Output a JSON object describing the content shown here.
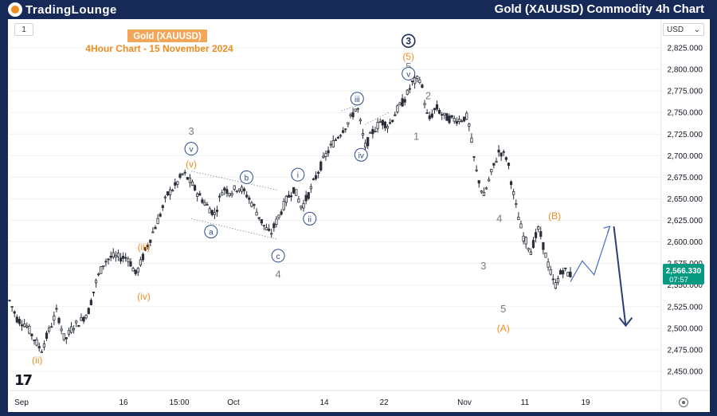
{
  "header": {
    "logo_main": "TradingLounge",
    "title": "Gold (XAUUSD) Commodity 4h Chart"
  },
  "toolbar": {
    "timeframe": "1",
    "currency": "USD",
    "currency_caret": "⌄"
  },
  "tv_logo": "17",
  "chart_data": {
    "type": "candlestick",
    "instrument_label": "Gold (XAUUSD)",
    "subtitle": "4Hour Chart - 15 November  2024",
    "y_axis": {
      "ylim": [
        2430,
        2840
      ],
      "ticks": [
        2450,
        2475,
        2500,
        2525,
        2550,
        2575,
        2600,
        2625,
        2650,
        2675,
        2700,
        2725,
        2750,
        2775,
        2800,
        2825
      ]
    },
    "x_axis": {
      "labels": [
        "Sep",
        "16",
        "15:00",
        "Oct",
        "14",
        "22",
        "Nov",
        "11",
        "19"
      ]
    },
    "last_price": {
      "value": "2,566.330",
      "countdown": "07:57"
    },
    "price_path": [
      {
        "t": 0,
        "p": 2532
      },
      {
        "t": 2,
        "p": 2510
      },
      {
        "t": 4,
        "p": 2505
      },
      {
        "t": 6,
        "p": 2490
      },
      {
        "t": 8,
        "p": 2474
      },
      {
        "t": 10,
        "p": 2497
      },
      {
        "t": 12,
        "p": 2520
      },
      {
        "t": 14,
        "p": 2485
      },
      {
        "t": 16,
        "p": 2502
      },
      {
        "t": 18,
        "p": 2508
      },
      {
        "t": 20,
        "p": 2520
      },
      {
        "t": 22,
        "p": 2555
      },
      {
        "t": 24,
        "p": 2577
      },
      {
        "t": 26,
        "p": 2583
      },
      {
        "t": 28,
        "p": 2582
      },
      {
        "t": 30,
        "p": 2582
      },
      {
        "t": 32,
        "p": 2562
      },
      {
        "t": 34,
        "p": 2585
      },
      {
        "t": 36,
        "p": 2608
      },
      {
        "t": 38,
        "p": 2630
      },
      {
        "t": 40,
        "p": 2655
      },
      {
        "t": 42,
        "p": 2665
      },
      {
        "t": 44,
        "p": 2680
      },
      {
        "t": 46,
        "p": 2668
      },
      {
        "t": 48,
        "p": 2654
      },
      {
        "t": 50,
        "p": 2642
      },
      {
        "t": 52,
        "p": 2632
      },
      {
        "t": 54,
        "p": 2662
      },
      {
        "t": 56,
        "p": 2658
      },
      {
        "t": 58,
        "p": 2664
      },
      {
        "t": 60,
        "p": 2655
      },
      {
        "t": 62,
        "p": 2640
      },
      {
        "t": 64,
        "p": 2622
      },
      {
        "t": 66,
        "p": 2608
      },
      {
        "t": 68,
        "p": 2628
      },
      {
        "t": 70,
        "p": 2648
      },
      {
        "t": 72,
        "p": 2662
      },
      {
        "t": 74,
        "p": 2640
      },
      {
        "t": 76,
        "p": 2658
      },
      {
        "t": 78,
        "p": 2680
      },
      {
        "t": 80,
        "p": 2700
      },
      {
        "t": 82,
        "p": 2715
      },
      {
        "t": 84,
        "p": 2728
      },
      {
        "t": 86,
        "p": 2740
      },
      {
        "t": 88,
        "p": 2758
      },
      {
        "t": 90,
        "p": 2710
      },
      {
        "t": 92,
        "p": 2728
      },
      {
        "t": 94,
        "p": 2740
      },
      {
        "t": 96,
        "p": 2735
      },
      {
        "t": 98,
        "p": 2752
      },
      {
        "t": 100,
        "p": 2765
      },
      {
        "t": 102,
        "p": 2784
      },
      {
        "t": 104,
        "p": 2790
      },
      {
        "t": 106,
        "p": 2740
      },
      {
        "t": 108,
        "p": 2756
      },
      {
        "t": 110,
        "p": 2745
      },
      {
        "t": 112,
        "p": 2742
      },
      {
        "t": 114,
        "p": 2742
      },
      {
        "t": 116,
        "p": 2745
      },
      {
        "t": 118,
        "p": 2685
      },
      {
        "t": 120,
        "p": 2652
      },
      {
        "t": 122,
        "p": 2680
      },
      {
        "t": 124,
        "p": 2706
      },
      {
        "t": 126,
        "p": 2697
      },
      {
        "t": 128,
        "p": 2645
      },
      {
        "t": 130,
        "p": 2607
      },
      {
        "t": 132,
        "p": 2590
      },
      {
        "t": 134,
        "p": 2616
      },
      {
        "t": 136,
        "p": 2580
      },
      {
        "t": 138,
        "p": 2548
      },
      {
        "t": 140,
        "p": 2568
      },
      {
        "t": 142,
        "p": 2562
      }
    ],
    "channels": [
      {
        "from": {
          "t": 46,
          "p": 2682
        },
        "to": {
          "t": 68,
          "p": 2660
        }
      },
      {
        "from": {
          "t": 46,
          "p": 2627
        },
        "to": {
          "t": 68,
          "p": 2603
        }
      },
      {
        "from": {
          "t": 90,
          "p": 2736
        },
        "to": {
          "t": 96,
          "p": 2750
        }
      },
      {
        "from": {
          "t": 84,
          "p": 2752
        },
        "to": {
          "t": 88,
          "p": 2758
        }
      }
    ],
    "projection": [
      {
        "t": 142,
        "p": 2554
      },
      {
        "t": 145,
        "p": 2578
      },
      {
        "t": 148,
        "p": 2562
      },
      {
        "t": 152,
        "p": 2618
      }
    ],
    "projection_drop": {
      "from": {
        "t": 153,
        "p": 2618
      },
      "to": {
        "t": 156,
        "p": 2503
      }
    },
    "wave_labels": [
      {
        "text": "(ii)",
        "t": 7,
        "p": 2463,
        "style": "orange"
      },
      {
        "text": "(iii)",
        "t": 34,
        "p": 2594,
        "style": "orange"
      },
      {
        "text": "(iv)",
        "t": 34,
        "p": 2537,
        "style": "orange"
      },
      {
        "text": "(v)",
        "t": 46,
        "p": 2690,
        "style": "orange"
      },
      {
        "text": "3",
        "t": 46,
        "p": 2728,
        "style": "gray"
      },
      {
        "text": "v",
        "t": 46,
        "p": 2708,
        "style": "circle"
      },
      {
        "text": "a",
        "t": 51,
        "p": 2612,
        "style": "circle"
      },
      {
        "text": "b",
        "t": 60,
        "p": 2675,
        "style": "circle"
      },
      {
        "text": "c",
        "t": 68,
        "p": 2584,
        "style": "circle"
      },
      {
        "text": "4",
        "t": 68,
        "p": 2562,
        "style": "gray"
      },
      {
        "text": "i",
        "t": 73,
        "p": 2678,
        "style": "circle"
      },
      {
        "text": "ii",
        "t": 76,
        "p": 2627,
        "style": "circle"
      },
      {
        "text": "iii",
        "t": 88,
        "p": 2766,
        "style": "circle"
      },
      {
        "text": "iv",
        "t": 89,
        "p": 2701,
        "style": "circle"
      },
      {
        "text": "3",
        "t": 101,
        "p": 2833,
        "style": "circle-dark"
      },
      {
        "text": "(5)",
        "t": 101,
        "p": 2815,
        "style": "orange"
      },
      {
        "text": "5",
        "t": 101,
        "p": 2803,
        "style": "gray"
      },
      {
        "text": "v",
        "t": 101,
        "p": 2795,
        "style": "circle"
      },
      {
        "text": "2",
        "t": 106,
        "p": 2769,
        "style": "gray"
      },
      {
        "text": "1",
        "t": 103,
        "p": 2722,
        "style": "gray"
      },
      {
        "text": "4",
        "t": 124,
        "p": 2627,
        "style": "gray"
      },
      {
        "text": "3",
        "t": 120,
        "p": 2572,
        "style": "gray"
      },
      {
        "text": "5",
        "t": 125,
        "p": 2522,
        "style": "gray"
      },
      {
        "text": "(A)",
        "t": 125,
        "p": 2500,
        "style": "orange"
      },
      {
        "text": "(B)",
        "t": 138,
        "p": 2630,
        "style": "orange"
      }
    ]
  },
  "colors": {
    "background_frame": "#172a57",
    "candle": "#2a2e39",
    "orange": "#f08c1e",
    "gray_label": "#787b86",
    "circle_label": "#2b4a8a",
    "projection": "#4a6fc4",
    "drop": "#2b3c7a",
    "price_tag": "#089981",
    "grid": "#eef0f3"
  }
}
